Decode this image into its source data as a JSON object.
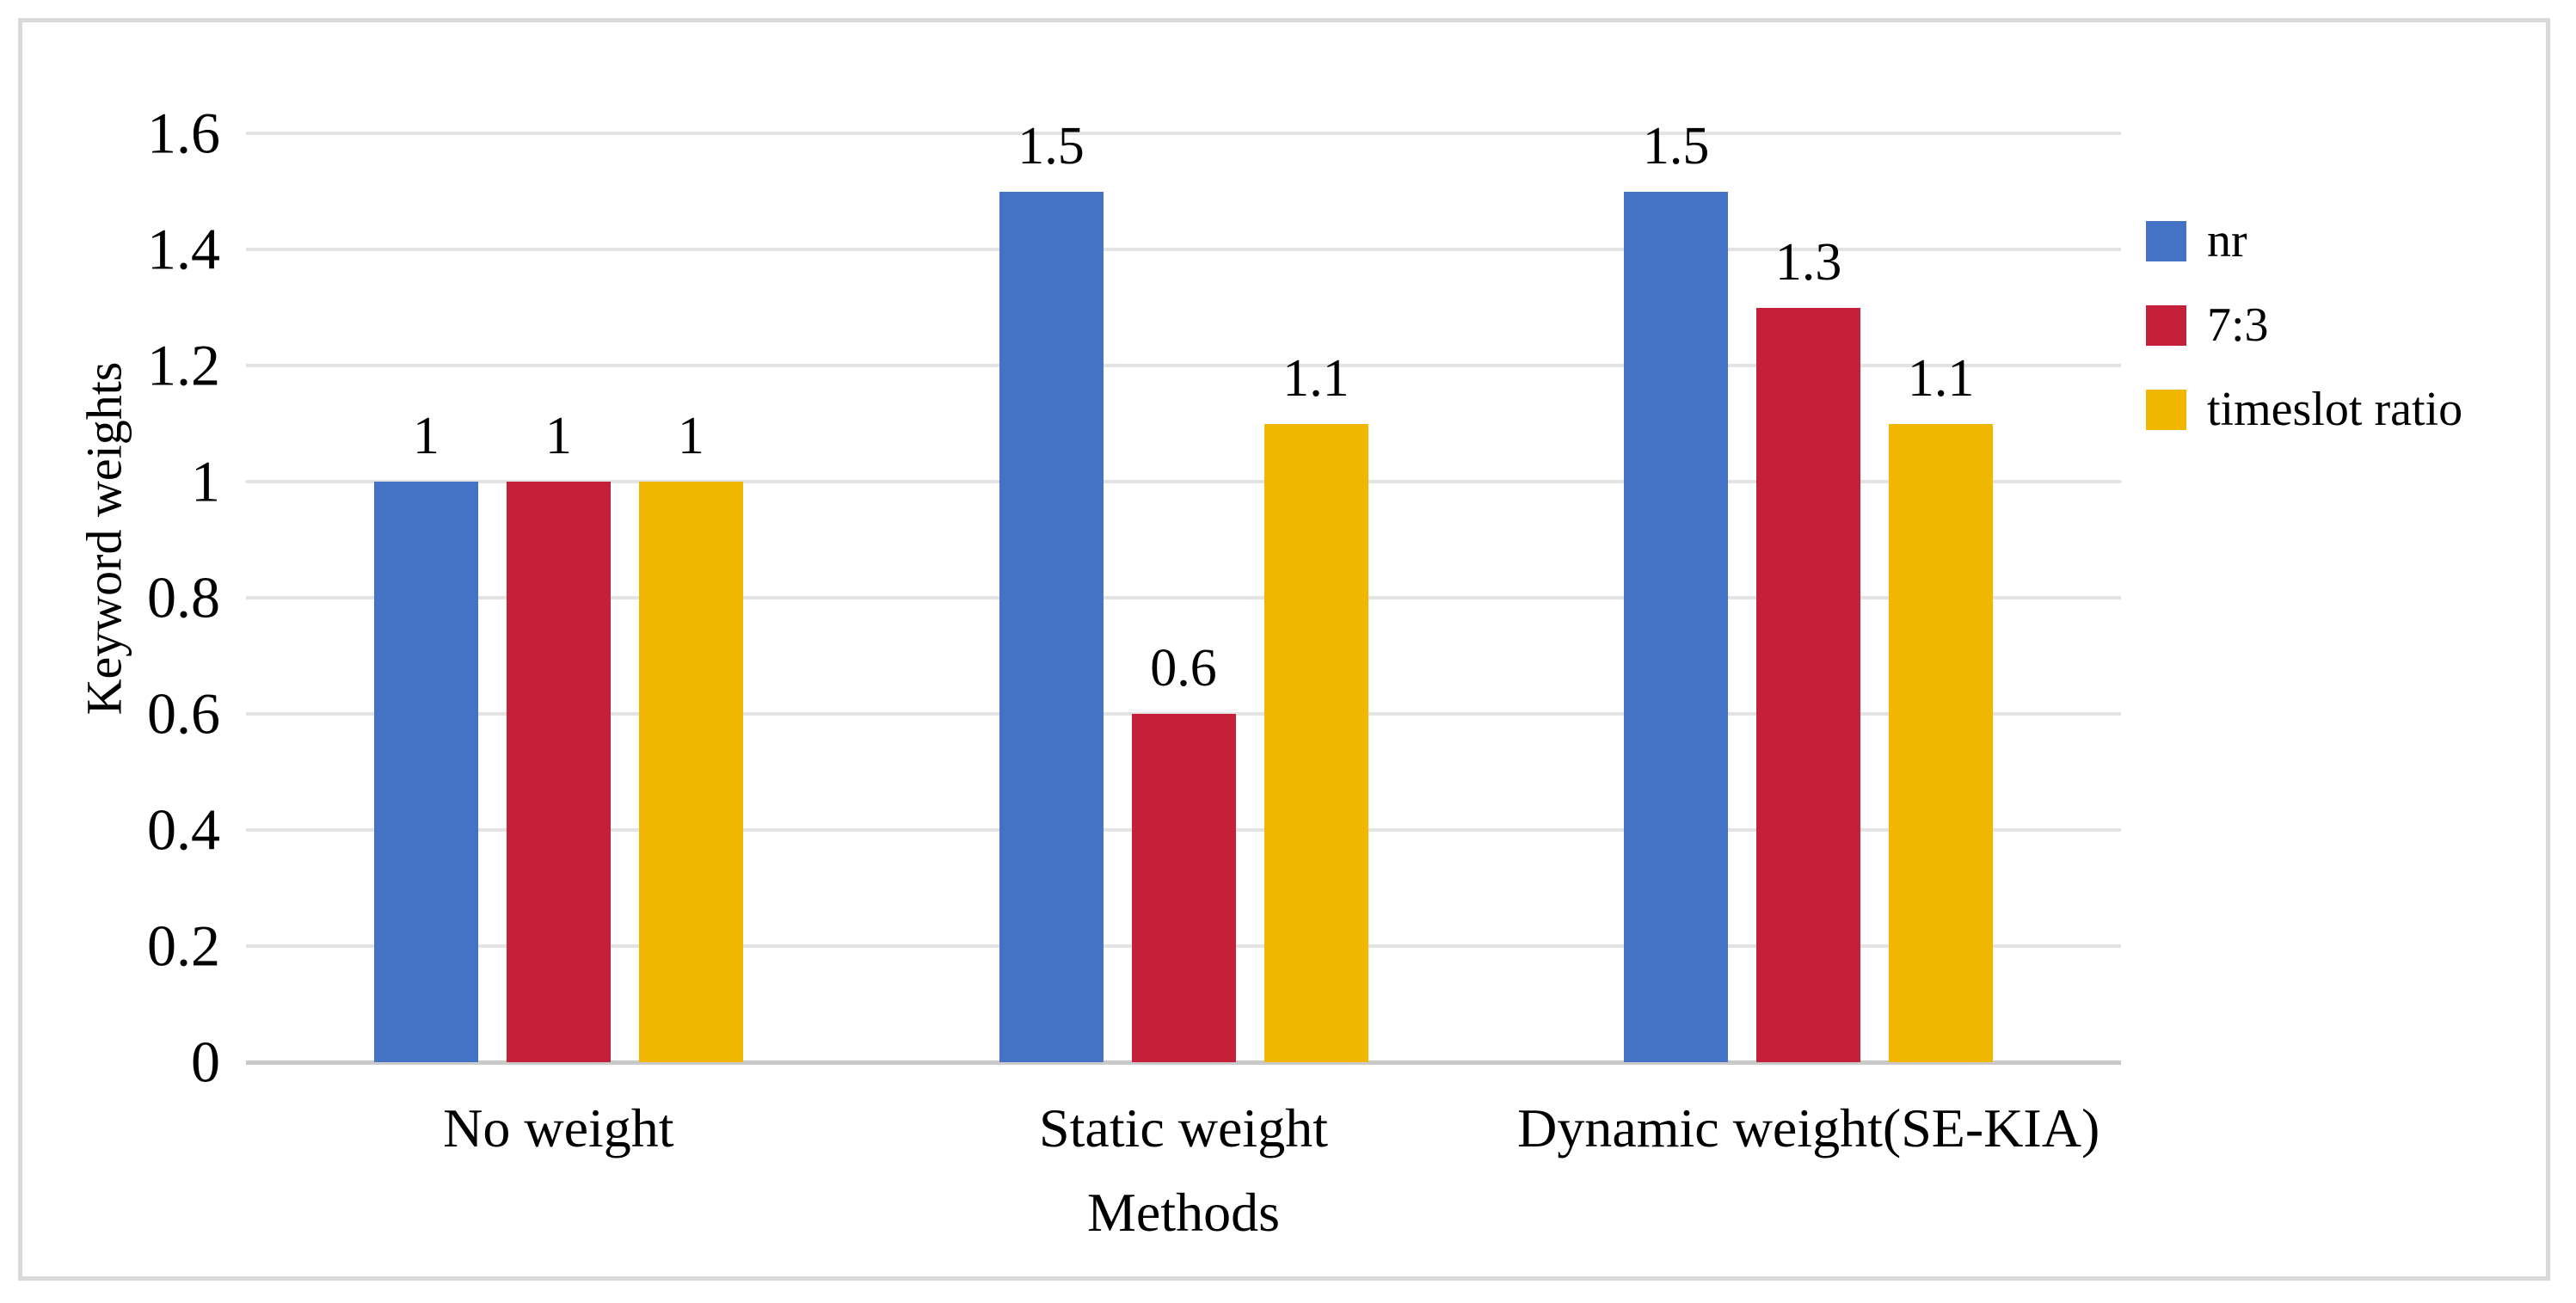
{
  "figure": {
    "background": "#FFFFFF",
    "border_color": "#D9D9D9"
  },
  "chart_data": {
    "type": "bar",
    "title": "",
    "xlabel": "Methods",
    "ylabel": "Keyword weights",
    "categories": [
      "No weight",
      "Static weight",
      "Dynamic weight(SE-KIA)"
    ],
    "series": [
      {
        "name": "nr",
        "color": "#4472C4",
        "values": [
          1,
          1.5,
          1.5
        ],
        "data_labels": [
          "1",
          "1.5",
          "1.5"
        ]
      },
      {
        "name": "7:3",
        "color": "#C5203A",
        "values": [
          1,
          0.6,
          1.3
        ],
        "data_labels": [
          "1",
          "0.6",
          "1.3"
        ]
      },
      {
        "name": "timeslot ratio",
        "color": "#F1B700",
        "values": [
          1,
          1.1,
          1.1
        ],
        "data_labels": [
          "1",
          "1.1",
          "1.1"
        ]
      }
    ],
    "ylim": [
      0,
      1.6
    ],
    "ytick_interval": 0.2,
    "yticks": [
      {
        "value": 1.6,
        "label": "1.6"
      },
      {
        "value": 1.4,
        "label": "1.4"
      },
      {
        "value": 1.2,
        "label": "1.2"
      },
      {
        "value": 1.0,
        "label": "1"
      },
      {
        "value": 0.8,
        "label": "0.8"
      },
      {
        "value": 0.6,
        "label": "0.6"
      },
      {
        "value": 0.4,
        "label": "0.4"
      },
      {
        "value": 0.2,
        "label": "0.2"
      },
      {
        "value": 0.0,
        "label": "0"
      }
    ],
    "grid": true,
    "gridline_color": "#E3E3E3",
    "axis_line_color": "#C9C9C9",
    "legend_position": "right"
  }
}
